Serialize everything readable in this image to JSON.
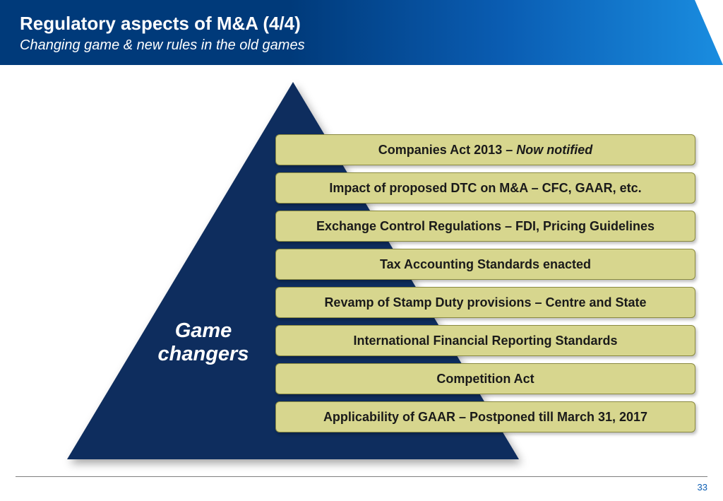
{
  "header": {
    "title": "Regulatory aspects of M&A (4/4)",
    "subtitle": "Changing game & new rules in the old games"
  },
  "pyramid": {
    "label": "Game changers",
    "triangle_color": "#0e2d5e",
    "label_color": "#ffffff",
    "label_fontsize": 29
  },
  "bars": {
    "bg_color": "#d7d68e",
    "border_color": "#8a8a40",
    "text_color": "#1a1a1a",
    "fontsize": 18,
    "items": [
      {
        "prefix": "Companies Act 2013 – ",
        "italic_suffix": "Now notified"
      },
      {
        "text": "Impact of proposed DTC on M&A – CFC, GAAR, etc."
      },
      {
        "text": "Exchange Control Regulations – FDI, Pricing Guidelines"
      },
      {
        "text": "Tax Accounting Standards enacted"
      },
      {
        "text": "Revamp of Stamp Duty provisions – Centre and State"
      },
      {
        "text": "International Financial Reporting Standards"
      },
      {
        "text": "Competition Act"
      },
      {
        "text": "Applicability of GAAR – Postponed till March 31, 2017"
      }
    ]
  },
  "page_number": "33",
  "colors": {
    "header_gradient_start": "#003a7a",
    "header_gradient_end": "#1a8de0",
    "background": "#ffffff",
    "rule": "#808080",
    "pagenum": "#0a5db3"
  }
}
